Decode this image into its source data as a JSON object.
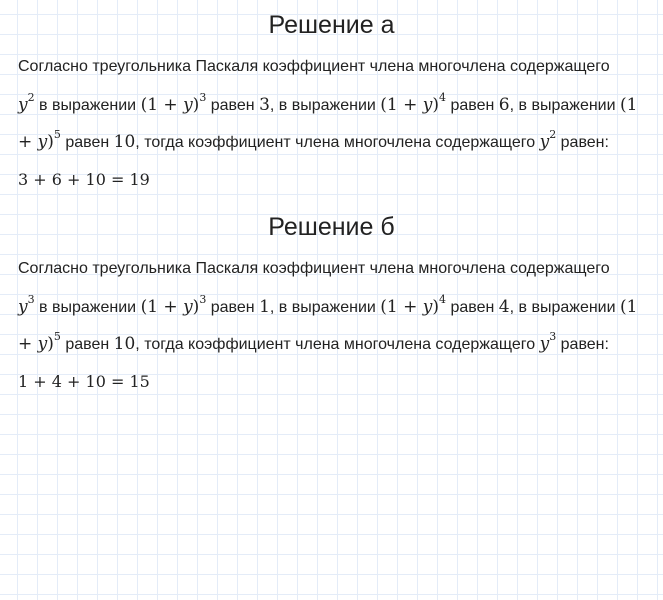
{
  "sections": [
    {
      "title": "Решение а",
      "intro": "Согласно треугольника Паскаля коэффициент члена многочлена содержащего",
      "var": "y",
      "pow": "2",
      "t1": " в выражении ",
      "e1": "(1 + ",
      "e1b": ")",
      "p1": "3",
      "t2": " равен ",
      "c1": "3",
      "t3": ", в выражении ",
      "p2": "4",
      "c2": "6",
      "t4": ", в выражении ",
      "p3": "5",
      "c3": "10",
      "t5": ", тогда коэффициент члена многочлена содержащего ",
      "t6": " равен:",
      "result": "3 + 6 + 10 = 19"
    },
    {
      "title": "Решение б",
      "intro": "Согласно треугольника Паскаля коэффициент члена многочлена содержащего",
      "var": "y",
      "pow": "3",
      "t1": " в выражении ",
      "e1": "(1 + ",
      "e1b": ")",
      "p1": "3",
      "t2": " равен ",
      "c1": "1",
      "t3": ", в выражении ",
      "p2": "4",
      "c2": "4",
      "t4": ", в выражении ",
      "p3": "5",
      "c3": "10",
      "t5": ", тогда коэффициент члена многочлена содержащего ",
      "t6": " равен:",
      "result": "1 + 4 + 10 = 15"
    }
  ]
}
